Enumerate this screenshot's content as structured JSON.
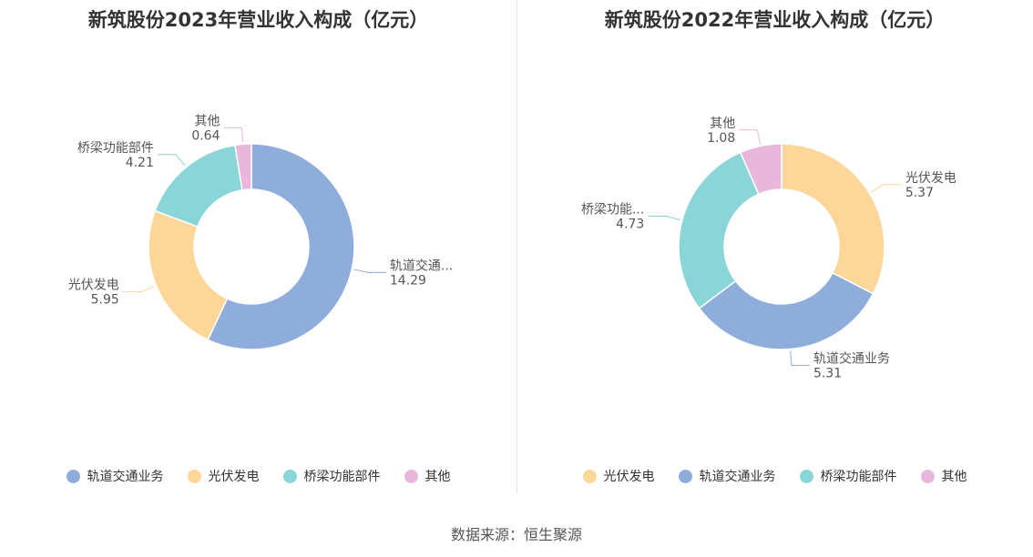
{
  "chart_data": [
    {
      "type": "pie",
      "title": "新筑股份2023年营业收入构成（亿元）",
      "categories": [
        "轨道交通业务",
        "光伏发电",
        "桥梁功能部件",
        "其他"
      ],
      "values": [
        14.29,
        5.95,
        4.21,
        0.64
      ],
      "slice_labels": [
        "轨道交通...",
        "光伏发电",
        "桥梁功能部件",
        "其他"
      ],
      "colors": [
        "#8eaddb",
        "#fdd79a",
        "#8ad5d8",
        "#e8b7db"
      ],
      "legend": [
        {
          "name": "轨道交通业务",
          "color": "#8eaddb"
        },
        {
          "name": "光伏发电",
          "color": "#fdd79a"
        },
        {
          "name": "桥梁功能部件",
          "color": "#8ad5d8"
        },
        {
          "name": "其他",
          "color": "#e8b7db"
        }
      ],
      "legend_position": "bottom",
      "style": "donut"
    },
    {
      "type": "pie",
      "title": "新筑股份2022年营业收入构成（亿元）",
      "categories": [
        "光伏发电",
        "轨道交通业务",
        "桥梁功能部件",
        "其他"
      ],
      "values": [
        5.37,
        5.31,
        4.73,
        1.08
      ],
      "slice_labels": [
        "光伏发电",
        "轨道交通业务",
        "桥梁功能...",
        "其他"
      ],
      "colors": [
        "#fdd79a",
        "#8eaddb",
        "#8ad5d8",
        "#e8b7db"
      ],
      "legend": [
        {
          "name": "光伏发电",
          "color": "#fdd79a"
        },
        {
          "name": "轨道交通业务",
          "color": "#8eaddb"
        },
        {
          "name": "桥梁功能部件",
          "color": "#8ad5d8"
        },
        {
          "name": "其他",
          "color": "#e8b7db"
        }
      ],
      "legend_position": "bottom",
      "style": "donut"
    }
  ],
  "footer": {
    "source": "数据来源：恒生聚源"
  }
}
